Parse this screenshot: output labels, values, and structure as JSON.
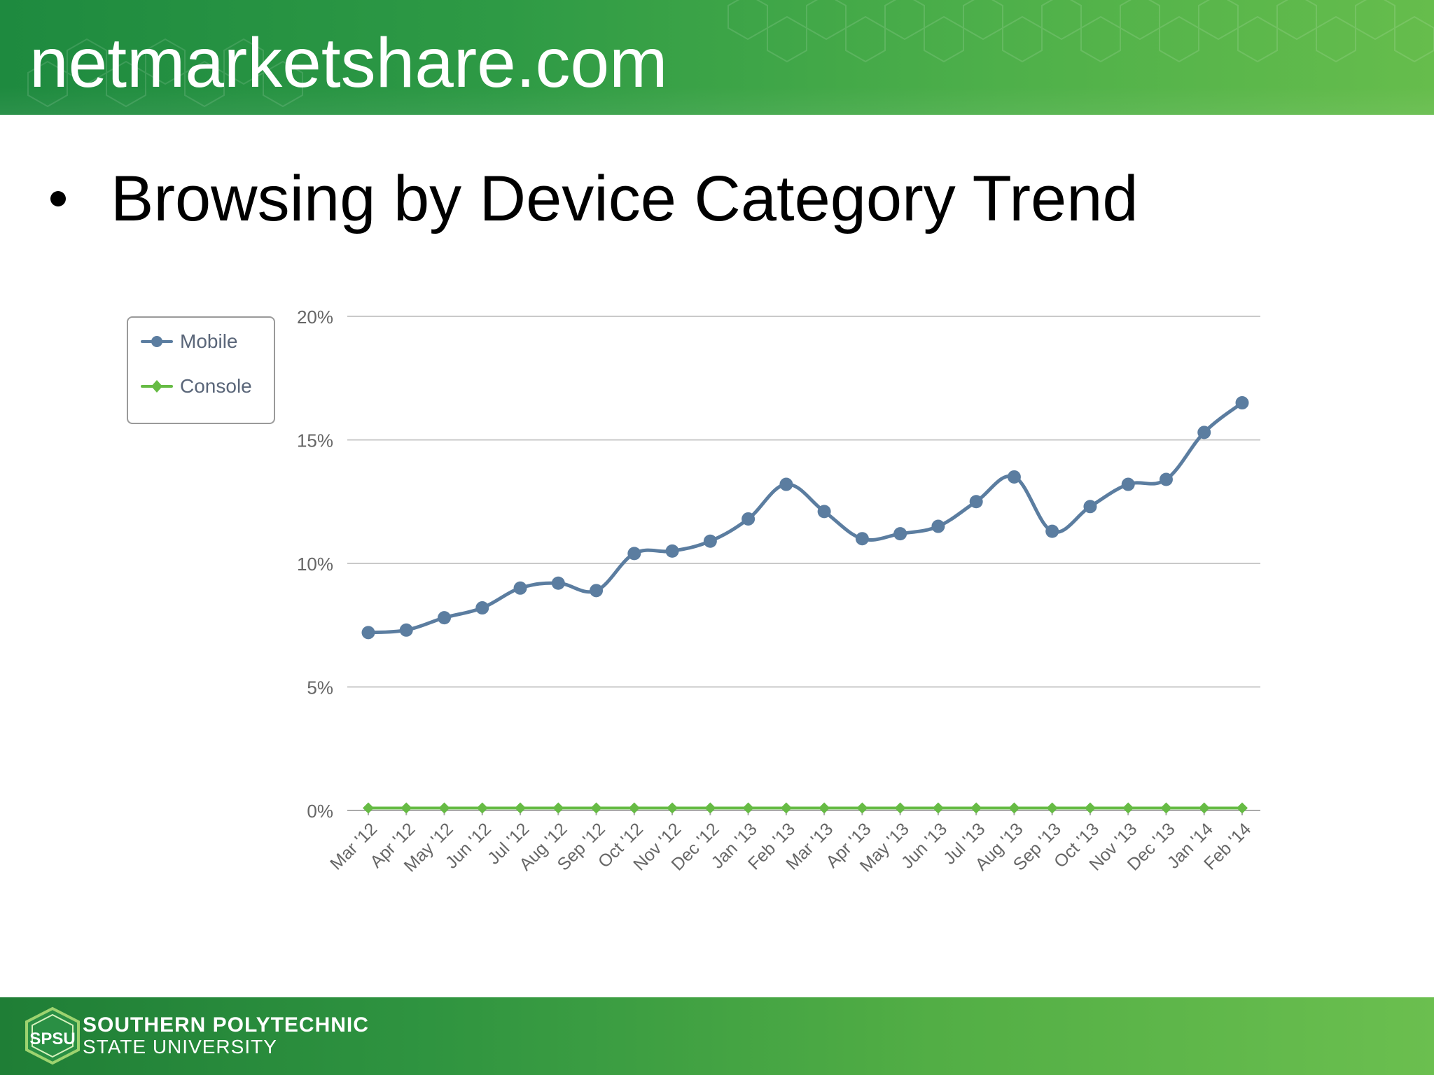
{
  "header": {
    "title": "netmarketshare.com"
  },
  "slide": {
    "bullet": "Browsing by Device Category Trend"
  },
  "legend": {
    "items": [
      {
        "label": "Mobile"
      },
      {
        "label": "Console"
      }
    ]
  },
  "footer": {
    "logo_text": "SPSU",
    "line1": "SOUTHERN POLYTECHNIC",
    "line2": "STATE UNIVERSITY"
  },
  "colors": {
    "mobile": "#5b7da0",
    "console": "#66bb44",
    "grid": "#c9c9c9",
    "axis_text": "#666666",
    "header_green": "#2e9a45"
  },
  "chart_data": {
    "type": "line",
    "title": "",
    "xlabel": "",
    "ylabel": "",
    "categories": [
      "Mar '12",
      "Apr '12",
      "May '12",
      "Jun '12",
      "Jul '12",
      "Aug '12",
      "Sep '12",
      "Oct '12",
      "Nov '12",
      "Dec '12",
      "Jan '13",
      "Feb '13",
      "Mar '13",
      "Apr '13",
      "May '13",
      "Jun '13",
      "Jul '13",
      "Aug '13",
      "Sep '13",
      "Oct '13",
      "Nov '13",
      "Dec '13",
      "Jan '14",
      "Feb '14"
    ],
    "series": [
      {
        "name": "Mobile",
        "values": [
          7.2,
          7.3,
          7.8,
          8.2,
          9.0,
          9.2,
          8.9,
          10.4,
          10.5,
          10.9,
          11.8,
          13.2,
          12.1,
          11.0,
          11.2,
          11.5,
          12.5,
          13.5,
          11.3,
          12.3,
          13.2,
          13.4,
          15.3,
          16.5
        ],
        "color": "#5b7da0",
        "marker": "circle"
      },
      {
        "name": "Console",
        "values": [
          0.1,
          0.1,
          0.1,
          0.1,
          0.1,
          0.1,
          0.1,
          0.1,
          0.1,
          0.1,
          0.1,
          0.1,
          0.1,
          0.1,
          0.1,
          0.1,
          0.1,
          0.1,
          0.1,
          0.1,
          0.1,
          0.1,
          0.1,
          0.1
        ],
        "color": "#66bb44",
        "marker": "diamond"
      }
    ],
    "ylim": [
      0,
      20
    ],
    "yticks": [
      "0%",
      "5%",
      "10%",
      "15%",
      "20%"
    ],
    "grid": true,
    "legend_position": "top-left"
  }
}
